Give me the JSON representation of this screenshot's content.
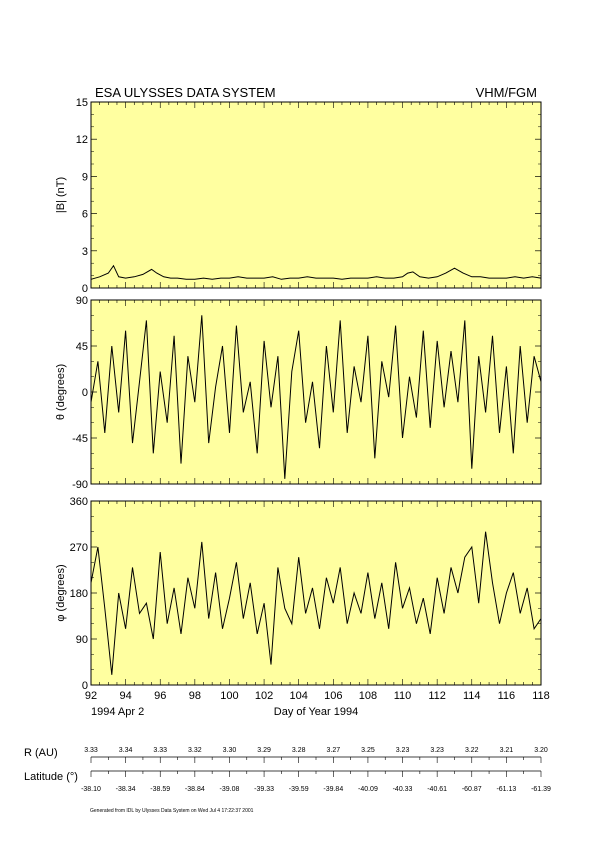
{
  "header": {
    "left": "ESA ULYSSES DATA SYSTEM",
    "right": "VHM/FGM"
  },
  "colors": {
    "panel_bg": "#ffffa0",
    "trace": "#000000",
    "axis": "#000000"
  },
  "footer": "Generated from IDL by Ulysses Data System on Wed Jul  4 17:22:37 2001",
  "chart_data": [
    {
      "type": "line",
      "ylabel": "|B| (nT)",
      "ylim": [
        0,
        15
      ],
      "yticks": [
        "0",
        "3",
        "6",
        "9",
        "12",
        "15"
      ],
      "xlim": [
        92,
        118
      ],
      "x": [
        92,
        92.5,
        93,
        93.3,
        93.6,
        94,
        94.5,
        95,
        95.5,
        95.8,
        96.2,
        96.6,
        97,
        97.5,
        98,
        98.5,
        99,
        99.5,
        100,
        100.5,
        101,
        101.5,
        102,
        102.5,
        103,
        103.5,
        104,
        104.5,
        105,
        105.5,
        106,
        106.5,
        107,
        107.5,
        108,
        108.5,
        109,
        109.5,
        110,
        110.3,
        110.6,
        111,
        111.5,
        112,
        112.5,
        113,
        113.5,
        114,
        114.5,
        115,
        115.5,
        116,
        116.5,
        117,
        117.5,
        118
      ],
      "y": [
        0.7,
        0.9,
        1.2,
        1.8,
        0.9,
        0.8,
        0.9,
        1.1,
        1.5,
        1.2,
        0.9,
        0.8,
        0.8,
        0.7,
        0.7,
        0.8,
        0.7,
        0.8,
        0.8,
        0.9,
        0.8,
        0.8,
        0.8,
        0.9,
        0.7,
        0.8,
        0.8,
        0.9,
        0.8,
        0.8,
        0.8,
        0.7,
        0.8,
        0.8,
        0.8,
        0.9,
        0.8,
        0.8,
        0.9,
        1.2,
        1.3,
        0.9,
        0.8,
        0.9,
        1.2,
        1.6,
        1.2,
        0.9,
        0.9,
        0.8,
        0.8,
        0.8,
        0.9,
        0.8,
        0.9,
        0.8
      ]
    },
    {
      "type": "line",
      "ylabel": "θ (degrees)",
      "ylim": [
        -90,
        90
      ],
      "yticks": [
        "-90",
        "-45",
        "0",
        "45",
        "90"
      ],
      "xlim": [
        92,
        118
      ],
      "x": [
        92,
        92.4,
        92.8,
        93.2,
        93.6,
        94,
        94.4,
        94.8,
        95.2,
        95.6,
        96,
        96.4,
        96.8,
        97.2,
        97.6,
        98,
        98.4,
        98.8,
        99.2,
        99.6,
        100,
        100.4,
        100.8,
        101.2,
        101.6,
        102,
        102.4,
        102.8,
        103.2,
        103.6,
        104,
        104.4,
        104.8,
        105.2,
        105.6,
        106,
        106.4,
        106.8,
        107.2,
        107.6,
        108,
        108.4,
        108.8,
        109.2,
        109.6,
        110,
        110.4,
        110.8,
        111.2,
        111.6,
        112,
        112.4,
        112.8,
        113.2,
        113.6,
        114,
        114.4,
        114.8,
        115.2,
        115.6,
        116,
        116.4,
        116.8,
        117.2,
        117.6,
        118
      ],
      "y": [
        -10,
        30,
        -40,
        45,
        -20,
        60,
        -50,
        10,
        70,
        -60,
        20,
        -30,
        55,
        -70,
        35,
        -10,
        75,
        -50,
        5,
        45,
        -40,
        65,
        -20,
        10,
        -60,
        50,
        -15,
        35,
        -85,
        20,
        60,
        -30,
        10,
        -55,
        45,
        -20,
        70,
        -40,
        25,
        -10,
        55,
        -65,
        30,
        -5,
        65,
        -45,
        15,
        -25,
        60,
        -35,
        50,
        -15,
        40,
        -10,
        70,
        -75,
        35,
        -20,
        55,
        -40,
        25,
        -60,
        45,
        -30,
        35,
        10
      ]
    },
    {
      "type": "line",
      "ylabel": "φ (degrees)",
      "ylim": [
        0,
        360
      ],
      "yticks": [
        "0",
        "90",
        "180",
        "270",
        "360"
      ],
      "xlim": [
        92,
        118
      ],
      "xticks": [
        "92",
        "94",
        "96",
        "98",
        "100",
        "102",
        "104",
        "106",
        "108",
        "110",
        "112",
        "114",
        "116",
        "118"
      ],
      "xlabel": "Day of Year 1994",
      "start_label": "1994 Apr  2",
      "x": [
        92,
        92.4,
        92.8,
        93.2,
        93.6,
        94,
        94.4,
        94.8,
        95.2,
        95.6,
        96,
        96.4,
        96.8,
        97.2,
        97.6,
        98,
        98.4,
        98.8,
        99.2,
        99.6,
        100,
        100.4,
        100.8,
        101.2,
        101.6,
        102,
        102.4,
        102.8,
        103.2,
        103.6,
        104,
        104.4,
        104.8,
        105.2,
        105.6,
        106,
        106.4,
        106.8,
        107.2,
        107.6,
        108,
        108.4,
        108.8,
        109.2,
        109.6,
        110,
        110.4,
        110.8,
        111.2,
        111.6,
        112,
        112.4,
        112.8,
        113.2,
        113.6,
        114,
        114.4,
        114.8,
        115.2,
        115.6,
        116,
        116.4,
        116.8,
        117.2,
        117.6,
        118
      ],
      "y": [
        200,
        270,
        150,
        20,
        180,
        110,
        230,
        140,
        160,
        90,
        260,
        120,
        190,
        100,
        210,
        150,
        280,
        130,
        220,
        110,
        170,
        240,
        130,
        200,
        100,
        160,
        40,
        230,
        150,
        120,
        250,
        140,
        190,
        110,
        210,
        160,
        230,
        120,
        180,
        140,
        220,
        130,
        200,
        110,
        240,
        150,
        190,
        120,
        170,
        100,
        210,
        140,
        230,
        180,
        250,
        270,
        160,
        300,
        200,
        120,
        180,
        220,
        140,
        190,
        110,
        130
      ]
    }
  ],
  "distance": {
    "label": "R (AU)",
    "values": [
      "3.33",
      "3.34",
      "3.33",
      "3.32",
      "3.30",
      "3.29",
      "3.28",
      "3.27",
      "3.25",
      "3.23",
      "3.23",
      "3.22",
      "3.21",
      "3.20"
    ]
  },
  "latitude": {
    "label": "Latitude (°)",
    "values": [
      "-38.10",
      "-38.34",
      "-38.59",
      "-38.84",
      "-39.08",
      "-39.33",
      "-39.59",
      "-39.84",
      "-40.09",
      "-40.33",
      "-40.61",
      "-60.87",
      "-61.13",
      "-61.39"
    ]
  }
}
